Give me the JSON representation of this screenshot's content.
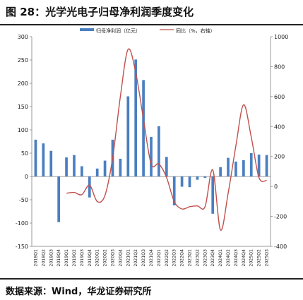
{
  "figure": {
    "title": "图 28：光学光电子归母净利润季度变化",
    "source": "数据来源：Wind，华龙证券研究所"
  },
  "colors": {
    "bar": "#4a7fc1",
    "line": "#c0504d",
    "axis": "#999999",
    "text": "#222222"
  },
  "chart_data": {
    "type": "bar",
    "categories": [
      "2018Q1",
      "2018Q2",
      "2018Q3",
      "2018Q4",
      "2019Q1",
      "2019Q2",
      "2019Q3",
      "2019Q4",
      "2020Q1",
      "2020Q2",
      "2020Q3",
      "2020Q4",
      "2021Q1",
      "2021Q2",
      "2021Q3",
      "2021Q4",
      "2022Q1",
      "2022Q2",
      "2022Q3",
      "2022Q4",
      "2023Q1",
      "2023Q2",
      "2023Q3",
      "2023Q4",
      "2024Q1",
      "2024Q2",
      "2024Q3",
      "2024Q4",
      "2025Q1",
      "2025Q2",
      "2025Q3"
    ],
    "series": [
      {
        "name": "归母净利润（亿元）",
        "type": "bar",
        "axis": "left",
        "values": [
          79,
          71,
          55,
          -98,
          41,
          46,
          22,
          -45,
          17,
          34,
          79,
          38,
          172,
          251,
          207,
          85,
          108,
          42,
          -62,
          -22,
          -23,
          -7,
          -3,
          -80,
          20,
          40,
          32,
          35,
          50,
          47,
          46
        ]
      },
      {
        "name": "同比（%，右轴）",
        "type": "line",
        "axis": "right",
        "values": [
          null,
          null,
          null,
          null,
          -45,
          -40,
          -55,
          8,
          -100,
          -60,
          190,
          600,
          915,
          760,
          450,
          150,
          150,
          60,
          -100,
          -150,
          -135,
          -130,
          -135,
          110,
          -290,
          -45,
          270,
          545,
          330,
          60,
          40
        ]
      }
    ],
    "y_left": {
      "ylim": [
        -150,
        300
      ],
      "ticks": [
        -150,
        -100,
        -50,
        0,
        50,
        100,
        150,
        200,
        250,
        300
      ]
    },
    "y_right": {
      "ylim": [
        -400,
        1000
      ],
      "ticks": [
        -400,
        -200,
        0,
        200,
        400,
        600,
        800,
        1000
      ]
    },
    "legend_position": "top-center",
    "grid": false
  }
}
